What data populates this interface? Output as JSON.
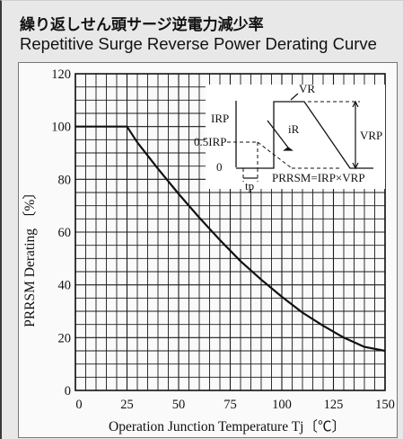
{
  "titles": {
    "jp": "繰り返しせん頭サージ逆電力減少率",
    "en": "Repetitive Surge Reverse Power Derating Curve"
  },
  "chart_data": {
    "type": "line",
    "title": "Repetitive Surge Reverse Power Derating Curve",
    "xlabel": "Operation Junction Temperature  Tj〔℃〕",
    "ylabel": "PRRSM Derating 〔%〕",
    "xlim": [
      0,
      150
    ],
    "ylim": [
      0,
      120
    ],
    "x_ticks": [
      0,
      25,
      50,
      75,
      100,
      125,
      150
    ],
    "y_ticks": [
      20,
      40,
      60,
      80,
      100,
      120
    ],
    "origin_label": "0",
    "grid": true,
    "series": [
      {
        "x": [
          0,
          25,
          30,
          40,
          50,
          60,
          70,
          80,
          90,
          100,
          110,
          120,
          130,
          140,
          150
        ],
        "values": [
          100,
          100,
          94,
          84,
          74.5,
          65.5,
          57,
          49,
          42,
          35.5,
          29.5,
          24.5,
          20,
          16.5,
          15
        ]
      }
    ],
    "inset": {
      "label_vr": "VR",
      "label_vrp": "VRP",
      "label_irp": "IRP",
      "label_half_irp": "0.5IRP",
      "label_zero": "0",
      "label_ir": "iR",
      "label_tp": "tp",
      "formula": "PRRSM=IRP×VRP"
    }
  },
  "colors": {
    "curve": "#111111",
    "grid": "#1a1a1a",
    "panel": "#fafafa",
    "frame": "#e8e8e8"
  }
}
